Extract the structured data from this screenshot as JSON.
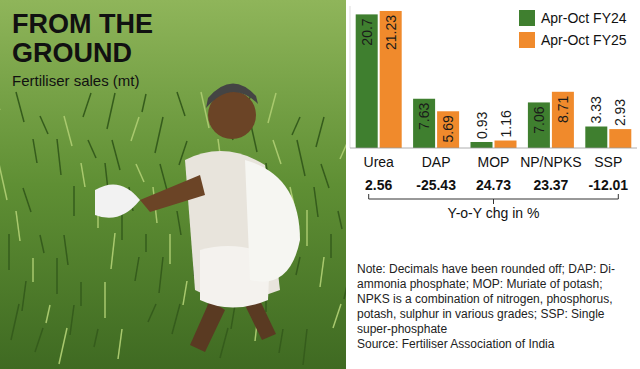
{
  "chart_data": {
    "type": "bar",
    "title": "FROM THE GROUND",
    "subtitle": "Fertiliser sales (mt)",
    "categories": [
      "Urea",
      "DAP",
      "MOP",
      "NP/NPKS",
      "SSP"
    ],
    "series": [
      {
        "name": "Apr-Oct FY24",
        "color": "#3f7f2f",
        "values": [
          20.7,
          7.63,
          0.93,
          7.06,
          3.33
        ]
      },
      {
        "name": "Apr-Oct FY25",
        "color": "#f08a2c",
        "values": [
          21.23,
          5.69,
          1.16,
          8.71,
          2.93
        ]
      }
    ],
    "ylim": [
      0,
      22
    ],
    "data_labels": true,
    "tick_labels": "x",
    "legend": "top-right",
    "grid": false,
    "yoy_change": {
      "label": "Y-o-Y chg in %",
      "values": [
        2.56,
        -25.43,
        24.73,
        23.37,
        -12.01
      ]
    },
    "note": "Note: Decimals have been rounded off; DAP: Di-ammonia phosphate; MOP: Muriate of potash; NPKS is a combination of nitrogen, phosphorus, potash, sulphur in various grades; SSP: Single super-phosphate",
    "source": "Source: Fertiliser Association of India"
  }
}
